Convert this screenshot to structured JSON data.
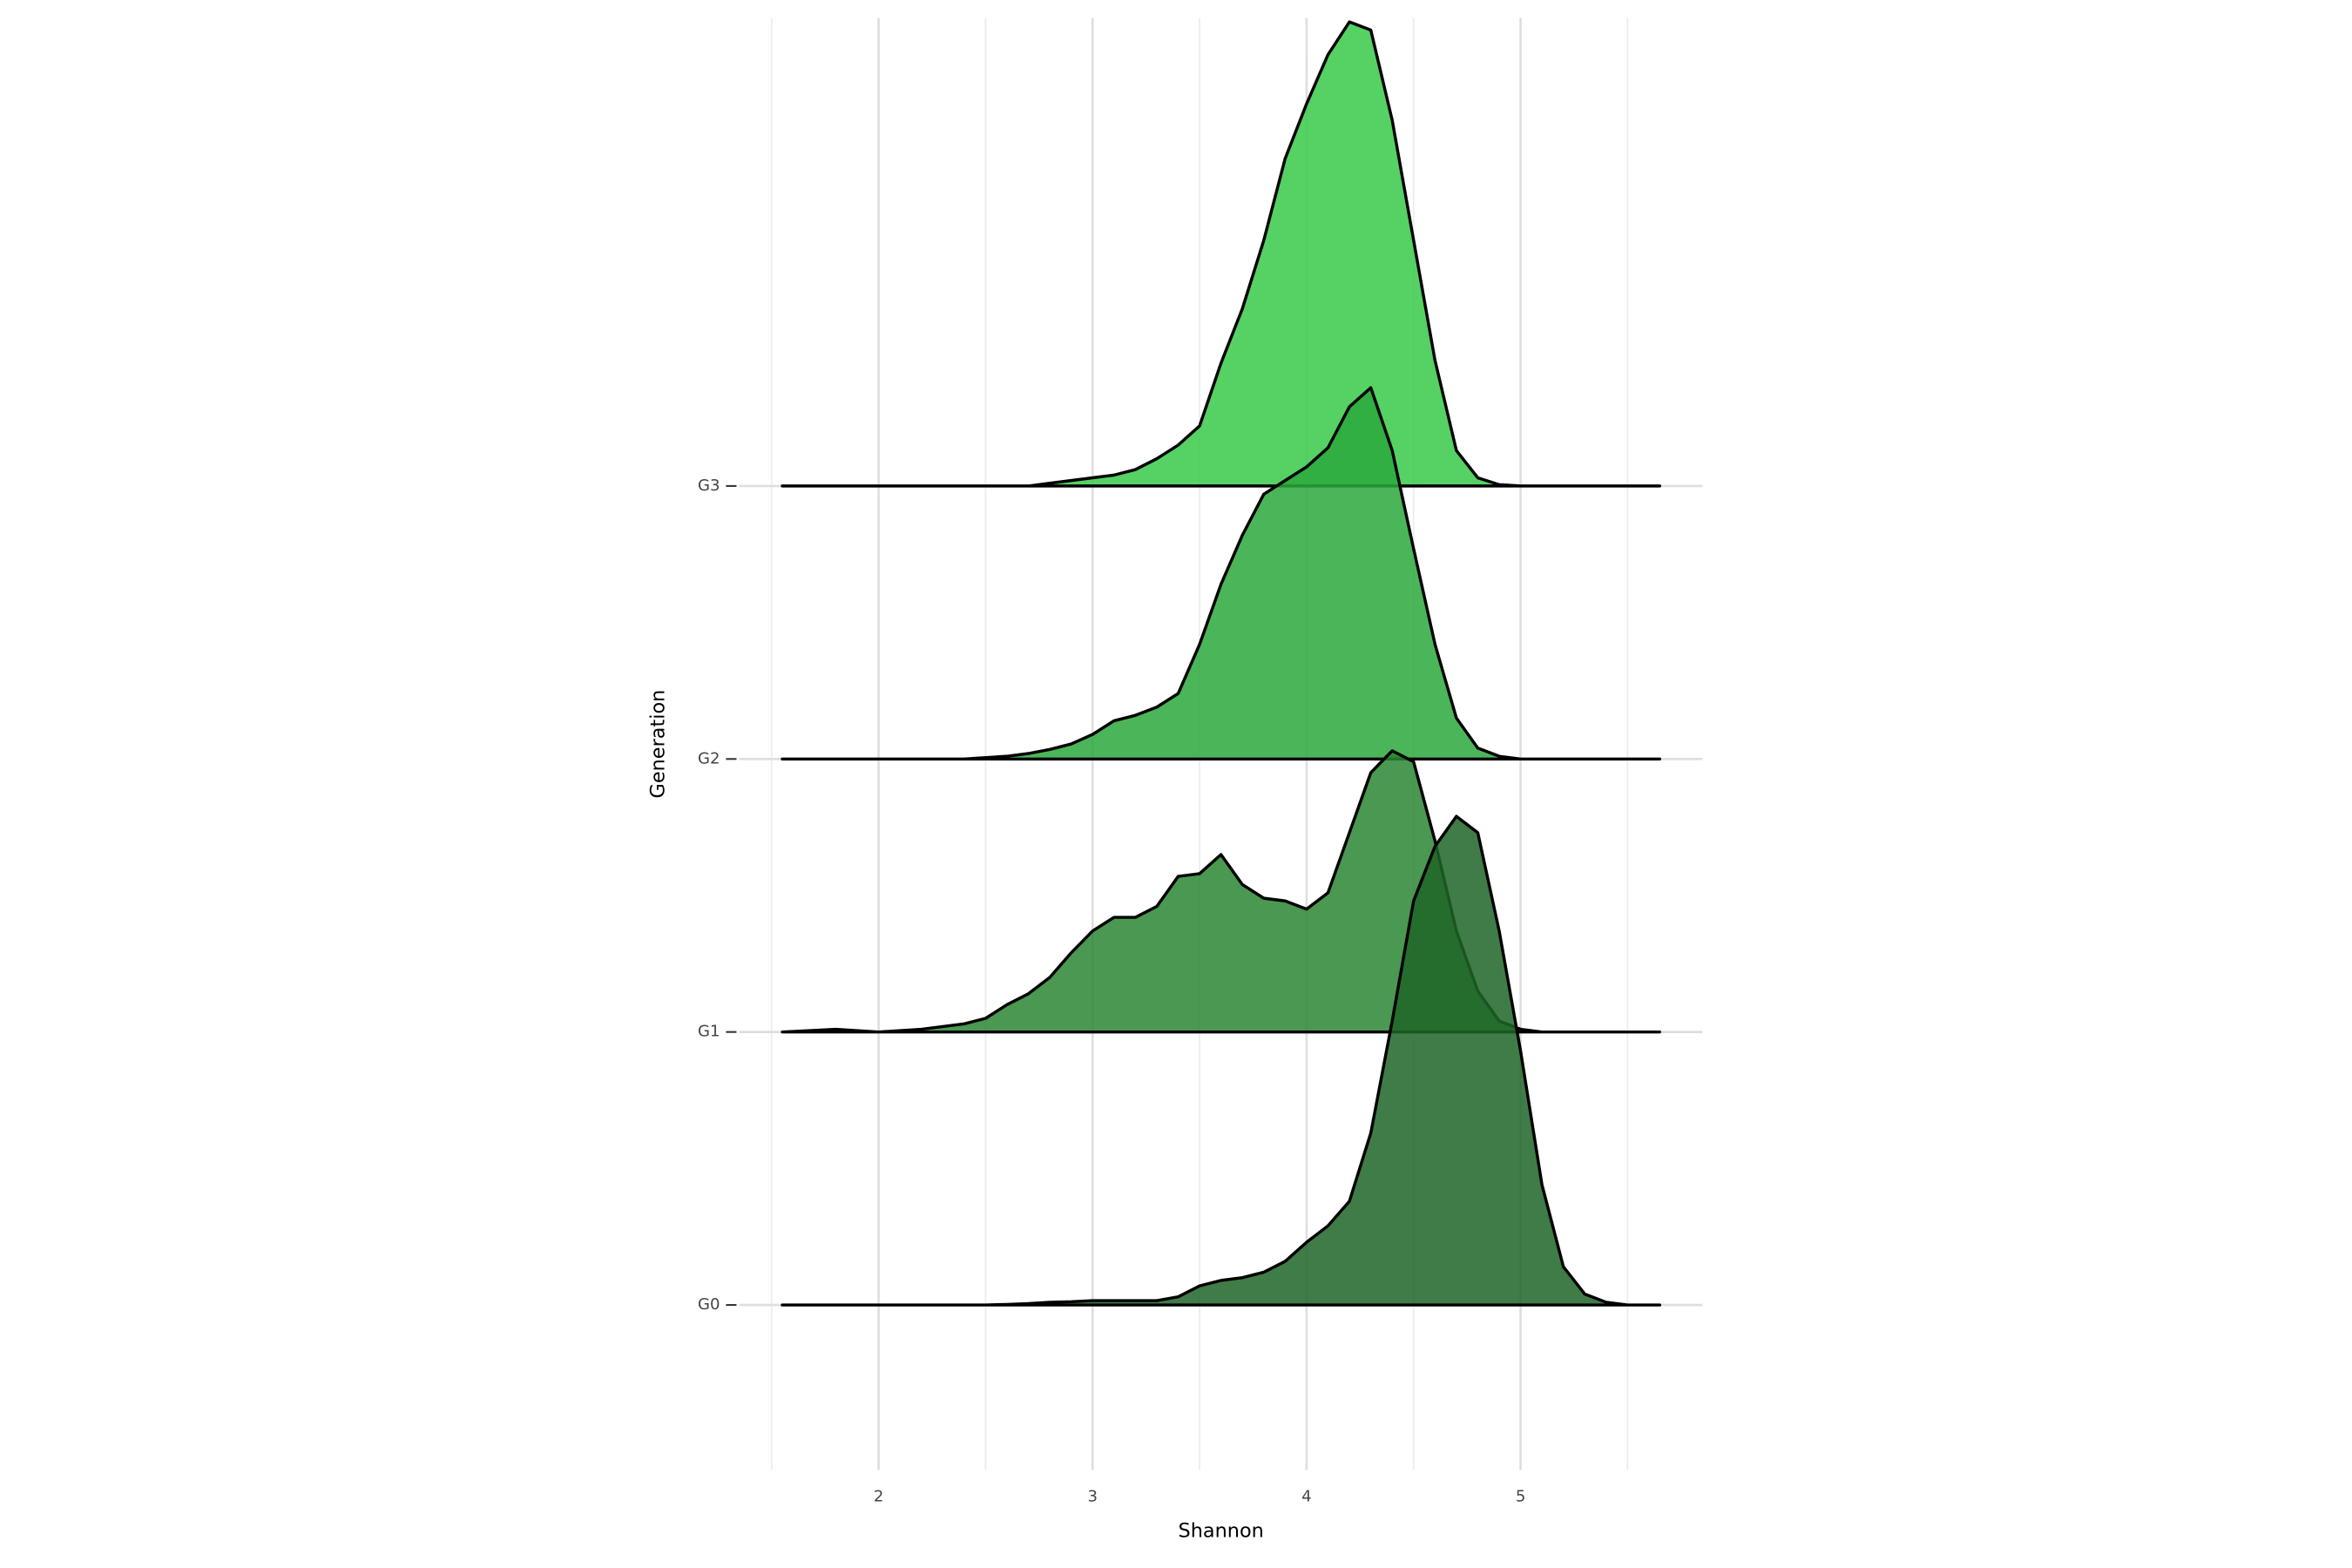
{
  "chart_data": {
    "type": "ridgeline",
    "x_label": "Shannon",
    "y_label": "Generation",
    "xlim": [
      1.35,
      5.85
    ],
    "xticks": [
      2,
      3,
      4,
      5
    ],
    "x_minor_ticks": [
      1.5,
      2.5,
      3.5,
      4.5,
      5.5
    ],
    "grid": true,
    "alpha": 0.85,
    "x": [
      1.55,
      1.8,
      2.0,
      2.2,
      2.4,
      2.5,
      2.6,
      2.7,
      2.8,
      2.9,
      3.0,
      3.1,
      3.2,
      3.3,
      3.4,
      3.5,
      3.6,
      3.7,
      3.8,
      3.9,
      4.0,
      4.1,
      4.2,
      4.3,
      4.4,
      4.5,
      4.6,
      4.7,
      4.8,
      4.9,
      5.0,
      5.1,
      5.2,
      5.3,
      5.4,
      5.5,
      5.65
    ],
    "series": [
      {
        "name": "G0",
        "color": "#1f6527",
        "values": [
          0,
          0,
          0,
          0,
          0,
          0,
          0.002,
          0.005,
          0.01,
          0.012,
          0.016,
          0.016,
          0.016,
          0.016,
          0.03,
          0.07,
          0.09,
          0.1,
          0.12,
          0.16,
          0.23,
          0.29,
          0.38,
          0.63,
          1.04,
          1.48,
          1.68,
          1.79,
          1.73,
          1.37,
          0.93,
          0.44,
          0.14,
          0.04,
          0.01,
          0,
          0
        ]
      },
      {
        "name": "G1",
        "color": "#2a8633",
        "values": [
          0,
          0.01,
          0,
          0.01,
          0.03,
          0.05,
          0.1,
          0.14,
          0.2,
          0.29,
          0.37,
          0.42,
          0.42,
          0.46,
          0.57,
          0.58,
          0.65,
          0.54,
          0.49,
          0.48,
          0.45,
          0.51,
          0.73,
          0.95,
          1.03,
          0.99,
          0.7,
          0.37,
          0.15,
          0.04,
          0.01,
          0,
          0,
          0,
          0,
          0,
          0
        ]
      },
      {
        "name": "G2",
        "color": "#2ba93c",
        "values": [
          0,
          0,
          0,
          0,
          0,
          0.005,
          0.01,
          0.02,
          0.035,
          0.055,
          0.09,
          0.14,
          0.16,
          0.19,
          0.24,
          0.42,
          0.64,
          0.82,
          0.97,
          1.02,
          1.07,
          1.14,
          1.29,
          1.36,
          1.13,
          0.77,
          0.42,
          0.15,
          0.04,
          0.01,
          0,
          0,
          0,
          0,
          0,
          0,
          0
        ]
      },
      {
        "name": "G3",
        "color": "#37ca48",
        "values": [
          0,
          0,
          0,
          0,
          0,
          0,
          0,
          0,
          0.01,
          0.02,
          0.03,
          0.04,
          0.06,
          0.1,
          0.15,
          0.22,
          0.45,
          0.65,
          0.9,
          1.2,
          1.4,
          1.58,
          1.7,
          1.67,
          1.34,
          0.9,
          0.46,
          0.13,
          0.03,
          0.005,
          0,
          0,
          0,
          0,
          0,
          0,
          0
        ]
      }
    ]
  }
}
